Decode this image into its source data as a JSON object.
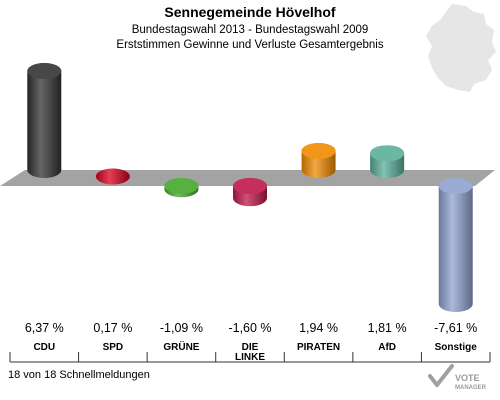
{
  "title": "Sennegemeinde Hövelhof",
  "subtitle": "Bundestagswahl 2013 - Bundestagswahl 2009",
  "subtitle2": "Erststimmen Gewinne und Verluste Gesamtergebnis",
  "footer": "18 von 18 Schnellmeldungen",
  "brand": {
    "line1": "VOTE",
    "line2": "MANAGER"
  },
  "chart_data": {
    "type": "bar",
    "categories": [
      "CDU",
      "SPD",
      "GRÜNE",
      "DIE LINKE",
      "PIRATEN",
      "AfD",
      "Sonstige"
    ],
    "values": [
      6.37,
      0.17,
      -1.09,
      -1.6,
      1.94,
      1.81,
      -7.61
    ],
    "value_labels": [
      "6,37 %",
      "0,17 %",
      "-1,09 %",
      "-1,60 %",
      "1,94 %",
      "1,81 %",
      "-7,61 %"
    ],
    "colors": [
      "#333333",
      "#d8001b",
      "#44a82c",
      "#c0174c",
      "#f08a00",
      "#5aaf9a",
      "#8fa2cf"
    ],
    "title": "Sennegemeinde Hövelhof",
    "xlabel": "",
    "ylabel": "",
    "ylim": [
      -7.61,
      6.37
    ]
  }
}
